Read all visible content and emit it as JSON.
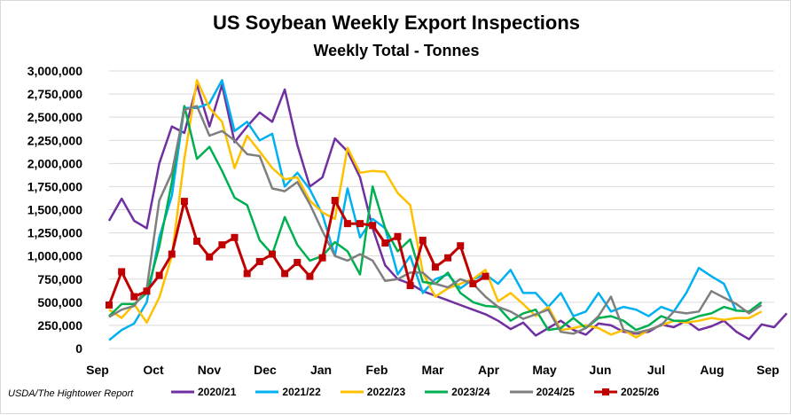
{
  "title": "US Soybean Weekly Export Inspections",
  "subtitle": "Weekly Total - Tonnes",
  "source": "USDA/The Hightower Report",
  "chart_data": {
    "type": "line",
    "x_tick_labels": [
      "Sep",
      "Oct",
      "Nov",
      "Dec",
      "Jan",
      "Feb",
      "Mar",
      "Apr",
      "May",
      "Jun",
      "Jul",
      "Aug",
      "Sep"
    ],
    "y_tick_labels": [
      "0",
      "250,000",
      "500,000",
      "750,000",
      "1,000,000",
      "1,250,000",
      "1,500,000",
      "1,750,000",
      "2,000,000",
      "2,250,000",
      "2,500,000",
      "2,750,000",
      "3,000,000"
    ],
    "ylim": [
      0,
      3000000
    ],
    "x_unit": "weeks since start of September",
    "xlim": [
      0,
      53
    ],
    "grid": true,
    "legend_position": "bottom",
    "series": [
      {
        "name": "2020/21",
        "color": "#7030a0",
        "marker": false,
        "values": [
          1380000,
          1620000,
          1380000,
          1300000,
          2000000,
          2400000,
          2330000,
          2850000,
          2400000,
          2850000,
          2230000,
          2400000,
          2550000,
          2450000,
          2800000,
          2200000,
          1750000,
          1850000,
          2270000,
          2130000,
          1850000,
          1300000,
          900000,
          750000,
          700000,
          620000,
          570000,
          520000,
          470000,
          420000,
          370000,
          300000,
          210000,
          280000,
          140000,
          220000,
          300000,
          200000,
          150000,
          270000,
          250000,
          180000,
          160000,
          180000,
          260000,
          230000,
          300000,
          200000,
          240000,
          300000,
          180000,
          100000,
          260000,
          230000,
          380000
        ]
      },
      {
        "name": "2021/22",
        "color": "#00b0f0",
        "marker": false,
        "values": [
          90000,
          200000,
          270000,
          500000,
          1200000,
          1650000,
          2600000,
          2600000,
          2650000,
          2900000,
          2350000,
          2450000,
          2250000,
          2320000,
          1750000,
          1900000,
          1720000,
          1450000,
          1000000,
          1730000,
          1200000,
          1400000,
          1300000,
          800000,
          1000000,
          600000,
          750000,
          800000,
          650000,
          750000,
          800000,
          700000,
          850000,
          600000,
          600000,
          450000,
          600000,
          350000,
          400000,
          600000,
          400000,
          450000,
          420000,
          350000,
          450000,
          400000,
          600000,
          870000,
          780000,
          700000,
          400000
        ]
      },
      {
        "name": "2022/23",
        "color": "#ffc000",
        "marker": false,
        "values": [
          420000,
          330000,
          480000,
          280000,
          550000,
          1000000,
          2050000,
          2900000,
          2600000,
          2450000,
          1950000,
          2300000,
          2130000,
          1950000,
          1830000,
          1850000,
          1600000,
          1470000,
          1400000,
          2170000,
          1900000,
          1920000,
          1910000,
          1680000,
          1550000,
          820000,
          560000,
          650000,
          700000,
          750000,
          850000,
          510000,
          600000,
          480000,
          350000,
          450000,
          200000,
          220000,
          250000,
          220000,
          150000,
          200000,
          120000,
          200000,
          250000,
          300000,
          280000,
          300000,
          330000,
          310000,
          330000,
          330000,
          400000
        ]
      },
      {
        "name": "2023/24",
        "color": "#00b050",
        "marker": false,
        "values": [
          350000,
          480000,
          480000,
          600000,
          1100000,
          1800000,
          2620000,
          2050000,
          2180000,
          1920000,
          1630000,
          1550000,
          1170000,
          1020000,
          1420000,
          1120000,
          950000,
          1000000,
          1150000,
          1050000,
          800000,
          1750000,
          1300000,
          1050000,
          1180000,
          720000,
          700000,
          820000,
          600000,
          500000,
          460000,
          450000,
          300000,
          380000,
          420000,
          200000,
          220000,
          330000,
          220000,
          330000,
          350000,
          300000,
          200000,
          250000,
          350000,
          300000,
          300000,
          350000,
          380000,
          450000,
          410000,
          400000,
          500000
        ]
      },
      {
        "name": "2024/25",
        "color": "#7f7f7f",
        "marker": false,
        "values": [
          340000,
          420000,
          460000,
          650000,
          1600000,
          1900000,
          2580000,
          2620000,
          2300000,
          2350000,
          2250000,
          2100000,
          2080000,
          1730000,
          1700000,
          1800000,
          1560000,
          1270000,
          1000000,
          950000,
          1020000,
          950000,
          730000,
          750000,
          820000,
          820000,
          700000,
          660000,
          750000,
          700000,
          560000,
          450000,
          400000,
          320000,
          370000,
          420000,
          180000,
          160000,
          220000,
          350000,
          560000,
          200000,
          170000,
          200000,
          250000,
          400000,
          380000,
          400000,
          620000,
          550000,
          480000,
          380000,
          470000
        ]
      },
      {
        "name": "2025/26",
        "color": "#c00000",
        "marker": true,
        "values": [
          470000,
          830000,
          560000,
          620000,
          790000,
          1020000,
          1590000,
          1160000,
          990000,
          1120000,
          1200000,
          810000,
          940000,
          1020000,
          810000,
          930000,
          780000,
          980000,
          1600000,
          1350000,
          1350000,
          1330000,
          1140000,
          1210000,
          680000,
          1170000,
          880000,
          980000,
          1110000,
          700000,
          780000
        ]
      }
    ]
  }
}
